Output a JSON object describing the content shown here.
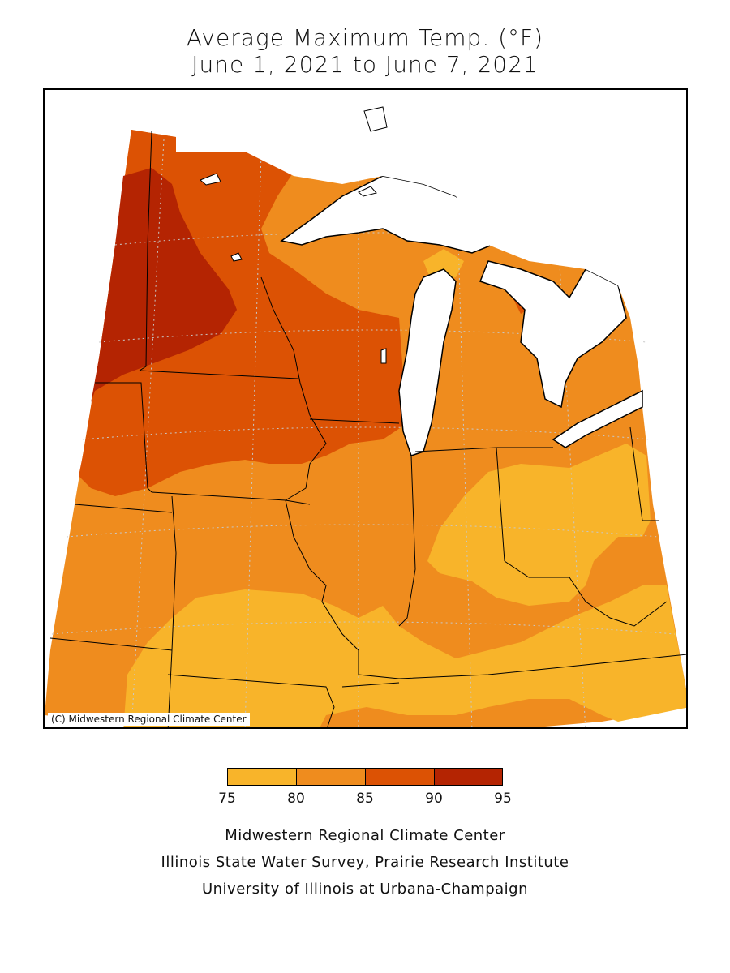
{
  "title": {
    "line1": "Average Maximum Temp. (°F)",
    "line2": "June 1, 2021 to June 7, 2021"
  },
  "map": {
    "region": "Midwest United States",
    "copyright": "(C) Midwestern Regional Climate Center",
    "lakes_color": "#ffffff",
    "grid_color": "#c8c8c8"
  },
  "legend": {
    "bins": [
      {
        "from": 75,
        "to": 80,
        "color": "#f8b42a"
      },
      {
        "from": 80,
        "to": 85,
        "color": "#ef8c1e"
      },
      {
        "from": 85,
        "to": 90,
        "color": "#dc5204"
      },
      {
        "from": 90,
        "to": 95,
        "color": "#b42402"
      }
    ],
    "ticks": [
      "75",
      "80",
      "85",
      "90",
      "95"
    ]
  },
  "credits": {
    "line1": "Midwestern Regional Climate Center",
    "line2": "Illinois State Water Survey, Prairie Research Institute",
    "line3": "University of Illinois at Urbana-Champaign"
  }
}
